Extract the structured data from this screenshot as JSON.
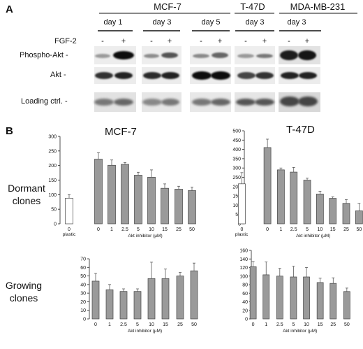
{
  "panel_a": {
    "letter": "A",
    "cell_lines": [
      "MCF-7",
      "T-47D",
      "MDA-MB-231"
    ],
    "groups": [
      {
        "day": "day 1"
      },
      {
        "day": "day 3"
      },
      {
        "day": "day 5"
      },
      {
        "day": "day 3"
      },
      {
        "day": "day 3"
      }
    ],
    "treatment_label": "FGF-2",
    "minus": "-",
    "plus": "+",
    "rows": [
      "Phospho-Akt -",
      "Akt -",
      "Loading ctrl. -"
    ]
  },
  "panel_b": {
    "letter": "B",
    "row_labels": {
      "dormant_line1": "Dormant",
      "dormant_line2": "clones",
      "growing_line1": "Growing",
      "growing_line2": "clones"
    },
    "titles": {
      "mcf7": "MCF-7",
      "t47d": "T-47D"
    },
    "xlabel": "Akt inhibitor (μM)",
    "plastic_label": "plastic"
  },
  "chart_data": [
    {
      "type": "bar",
      "panel": "B",
      "cell_line": "MCF-7",
      "clones": "Dormant",
      "title": "MCF-7",
      "categories": [
        "0",
        "0",
        "1",
        "2.5",
        "5",
        "10",
        "15",
        "25",
        "50"
      ],
      "control_category_label": "plastic",
      "values": [
        88,
        222,
        201,
        204,
        167,
        160,
        122,
        119,
        114
      ],
      "errors": [
        12,
        22,
        18,
        6,
        10,
        25,
        15,
        10,
        12
      ],
      "open_bar": [
        true,
        false,
        false,
        false,
        false,
        false,
        false,
        false,
        false
      ],
      "xlabel": "Akt inhibitor (μM)",
      "ylim": [
        0,
        300
      ],
      "yticks": [
        0,
        50,
        100,
        150,
        200,
        250,
        300
      ]
    },
    {
      "type": "bar",
      "panel": "B",
      "cell_line": "T-47D",
      "clones": "Dormant",
      "title": "T-47D",
      "categories": [
        "0",
        "0",
        "1",
        "2.5",
        "5",
        "10",
        "15",
        "25",
        "50"
      ],
      "control_category_label": "plastic",
      "values": [
        215,
        410,
        290,
        278,
        235,
        160,
        137,
        110,
        70
      ],
      "errors": [
        60,
        45,
        10,
        25,
        10,
        15,
        8,
        20,
        40
      ],
      "open_bar": [
        true,
        false,
        false,
        false,
        false,
        false,
        false,
        false,
        false
      ],
      "xlabel": "Akt inhibitor (μM)",
      "ylim": [
        0,
        500
      ],
      "yticks": [
        0,
        50,
        100,
        150,
        200,
        250,
        300,
        350,
        400,
        450,
        500
      ]
    },
    {
      "type": "bar",
      "panel": "B",
      "cell_line": "MCF-7",
      "clones": "Growing",
      "categories": [
        "0",
        "1",
        "2.5",
        "5",
        "10",
        "15",
        "25",
        "50"
      ],
      "values": [
        44,
        34,
        32,
        32,
        47,
        47,
        50,
        56
      ],
      "errors": [
        9,
        6,
        3,
        3,
        19,
        11,
        4,
        9
      ],
      "xlabel": "Akt inhibitor (μM)",
      "ylim": [
        0,
        70
      ],
      "yticks": [
        0,
        10,
        20,
        30,
        40,
        50,
        60,
        70
      ]
    },
    {
      "type": "bar",
      "panel": "B",
      "cell_line": "T-47D",
      "clones": "Growing",
      "categories": [
        "0",
        "1",
        "2.5",
        "5",
        "10",
        "15",
        "25",
        "50"
      ],
      "values": [
        122,
        103,
        100,
        98,
        98,
        85,
        83,
        64
      ],
      "errors": [
        12,
        30,
        18,
        25,
        22,
        10,
        13,
        8
      ],
      "xlabel": "Akt inhibitor (μM)",
      "ylim": [
        0,
        160
      ],
      "yticks": [
        0,
        20,
        40,
        60,
        80,
        100,
        120,
        140,
        160
      ]
    }
  ]
}
